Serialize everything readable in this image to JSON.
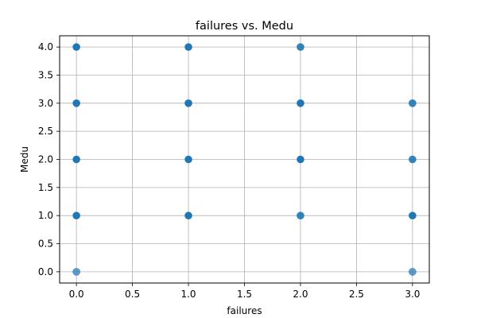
{
  "chart_data": {
    "type": "scatter",
    "title": "failures vs. Medu",
    "xlabel": "failures",
    "ylabel": "Medu",
    "xlim": [
      -0.15,
      3.15
    ],
    "ylim": [
      -0.2,
      4.2
    ],
    "x_ticks": [
      0.0,
      0.5,
      1.0,
      1.5,
      2.0,
      2.5,
      3.0
    ],
    "x_tick_labels": [
      "0.0",
      "0.5",
      "1.0",
      "1.5",
      "2.0",
      "2.5",
      "3.0"
    ],
    "y_ticks": [
      0.0,
      0.5,
      1.0,
      1.5,
      2.0,
      2.5,
      3.0,
      3.5,
      4.0
    ],
    "y_tick_labels": [
      "0.0",
      "0.5",
      "1.0",
      "1.5",
      "2.0",
      "2.5",
      "3.0",
      "3.5",
      "4.0"
    ],
    "grid": true,
    "colors": {
      "marker": "#1f77b4",
      "grid": "#b0b0b0",
      "axis": "#000000"
    },
    "points": [
      {
        "x": 0,
        "y": 0,
        "overlap": "light"
      },
      {
        "x": 0,
        "y": 1,
        "overlap": "heavy"
      },
      {
        "x": 0,
        "y": 2,
        "overlap": "heavy"
      },
      {
        "x": 0,
        "y": 3,
        "overlap": "heavy"
      },
      {
        "x": 0,
        "y": 4,
        "overlap": "heavy"
      },
      {
        "x": 1,
        "y": 1,
        "overlap": "heavy"
      },
      {
        "x": 1,
        "y": 2,
        "overlap": "heavy"
      },
      {
        "x": 1,
        "y": 3,
        "overlap": "heavy"
      },
      {
        "x": 1,
        "y": 4,
        "overlap": "heavy"
      },
      {
        "x": 2,
        "y": 1,
        "overlap": "medium"
      },
      {
        "x": 2,
        "y": 2,
        "overlap": "heavy"
      },
      {
        "x": 2,
        "y": 3,
        "overlap": "heavy"
      },
      {
        "x": 2,
        "y": 4,
        "overlap": "medium"
      },
      {
        "x": 3,
        "y": 0,
        "overlap": "light"
      },
      {
        "x": 3,
        "y": 1,
        "overlap": "heavy"
      },
      {
        "x": 3,
        "y": 2,
        "overlap": "medium"
      },
      {
        "x": 3,
        "y": 3,
        "overlap": "medium"
      }
    ]
  }
}
